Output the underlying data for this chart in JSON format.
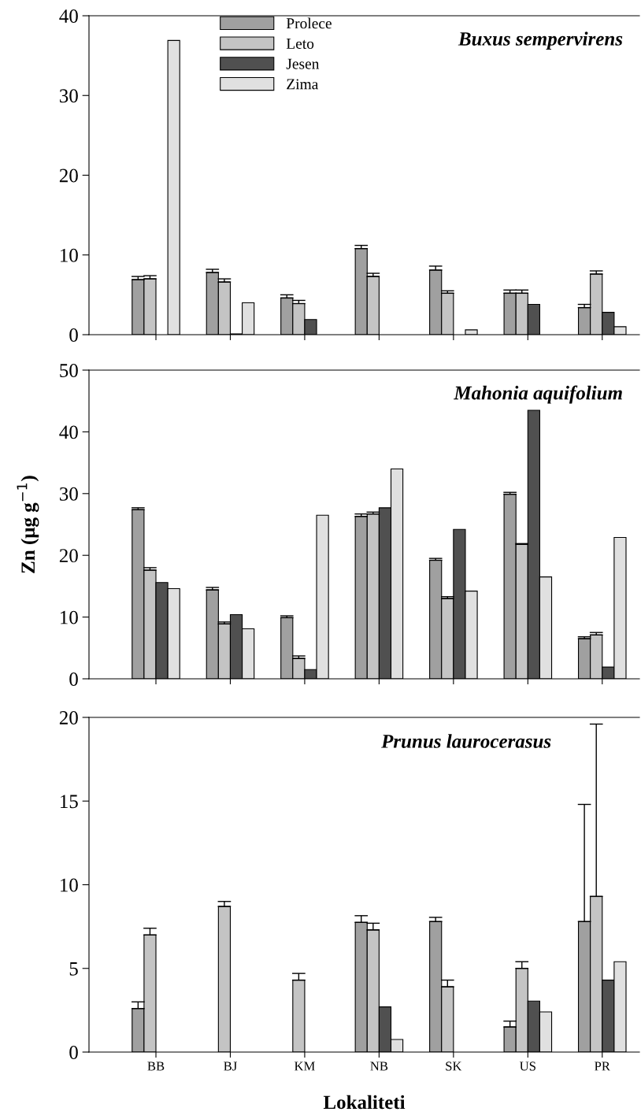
{
  "chart_data": [
    {
      "type": "bar",
      "title": "Buxus sempervirens",
      "ylim": [
        0,
        40
      ],
      "yticks": [
        0,
        10,
        20,
        30,
        40
      ],
      "tick_labels": "y",
      "legend": "top",
      "grid": false,
      "series": [
        {
          "name": "Prolece",
          "color": "#a0a0a0",
          "values": [
            6.9,
            7.8,
            4.6,
            10.8,
            8.1,
            5.2,
            3.4
          ],
          "errors": [
            [
              6.9,
              7.3
            ],
            [
              7.8,
              8.2
            ],
            [
              4.6,
              5.0
            ],
            [
              10.8,
              11.2
            ],
            [
              8.1,
              8.6
            ],
            [
              5.2,
              5.6
            ],
            [
              3.4,
              3.8
            ]
          ]
        },
        {
          "name": "Leto",
          "color": "#c4c4c4",
          "values": [
            7.0,
            6.6,
            3.9,
            7.3,
            5.2,
            5.2,
            7.6
          ],
          "errors": [
            [
              7.0,
              7.4
            ],
            [
              6.6,
              7.0
            ],
            [
              3.9,
              4.3
            ],
            [
              7.3,
              7.7
            ],
            [
              5.2,
              5.5
            ],
            [
              5.2,
              5.6
            ],
            [
              7.6,
              8.0
            ]
          ]
        },
        {
          "name": "Jesen",
          "color": "#505050",
          "values": [
            null,
            0.1,
            1.9,
            null,
            null,
            3.8,
            2.8
          ]
        },
        {
          "name": "Zima",
          "color": "#e0e0e0",
          "values": [
            36.9,
            4.0,
            null,
            null,
            0.6,
            null,
            1.0
          ]
        }
      ]
    },
    {
      "type": "bar",
      "title": "Mahonia aquifolium",
      "ylabel": "Zn (μg g$^{−1}$)",
      "ylim": [
        0,
        50
      ],
      "yticks": [
        0,
        10,
        20,
        30,
        40,
        50
      ],
      "tick_labels": "y",
      "grid": false,
      "series": [
        {
          "color": "#a0a0a0",
          "values": [
            27.4,
            14.4,
            9.9,
            26.3,
            19.2,
            29.9,
            6.5
          ],
          "errors": [
            [
              27.4,
              27.7
            ],
            [
              14.4,
              14.8
            ],
            [
              9.9,
              10.2
            ],
            [
              26.3,
              26.7
            ],
            [
              19.2,
              19.5
            ],
            [
              29.9,
              30.2
            ],
            [
              6.5,
              6.8
            ]
          ]
        },
        {
          "color": "#c4c4c4",
          "values": [
            17.6,
            8.9,
            3.3,
            26.7,
            13.0,
            21.8,
            7.1
          ],
          "errors": [
            [
              17.6,
              18.0
            ],
            [
              8.9,
              9.2
            ],
            [
              3.3,
              3.7
            ],
            [
              26.7,
              27.0
            ],
            [
              13.0,
              13.3
            ],
            [
              21.8,
              21.9
            ],
            [
              7.1,
              7.5
            ]
          ]
        },
        {
          "color": "#505050",
          "values": [
            15.6,
            10.4,
            1.5,
            27.7,
            24.2,
            43.5,
            1.9
          ]
        },
        {
          "color": "#e0e0e0",
          "values": [
            14.6,
            8.1,
            26.5,
            34.0,
            14.2,
            16.5,
            22.9
          ]
        }
      ]
    },
    {
      "type": "bar",
      "title": "Prunus laurocerasus",
      "xlabel": "Lokaliteti",
      "categories": [
        "BB",
        "BJ",
        "KM",
        "NB",
        "SK",
        "US",
        "PR"
      ],
      "ylim": [
        0,
        20
      ],
      "yticks": [
        0,
        5,
        10,
        15,
        20
      ],
      "grid": false,
      "series": [
        {
          "color": "#a0a0a0",
          "values": [
            2.6,
            null,
            null,
            7.75,
            7.8,
            1.5,
            7.8
          ],
          "errors": [
            [
              2.6,
              3.0
            ],
            null,
            null,
            [
              7.75,
              8.15
            ],
            [
              7.8,
              8.05
            ],
            [
              1.5,
              1.85
            ],
            [
              7.8,
              14.8
            ]
          ]
        },
        {
          "color": "#c4c4c4",
          "values": [
            7.0,
            8.7,
            4.3,
            7.3,
            3.9,
            5.0,
            9.3
          ],
          "errors": [
            [
              7.0,
              7.4
            ],
            [
              8.7,
              9.0
            ],
            [
              4.3,
              4.7
            ],
            [
              7.3,
              7.7
            ],
            [
              3.9,
              4.3
            ],
            [
              5.0,
              5.4
            ],
            [
              9.3,
              19.6
            ]
          ]
        },
        {
          "color": "#505050",
          "values": [
            null,
            null,
            null,
            2.7,
            null,
            3.05,
            4.3
          ]
        },
        {
          "color": "#e0e0e0",
          "values": [
            null,
            null,
            null,
            0.75,
            null,
            2.4,
            5.4
          ]
        }
      ]
    }
  ]
}
